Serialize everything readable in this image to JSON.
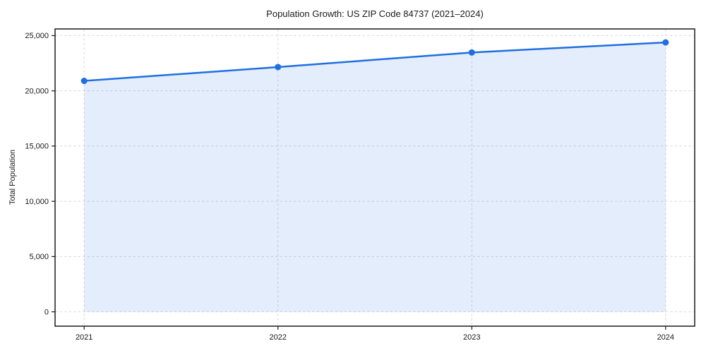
{
  "figure": {
    "title": "Population Growth: US ZIP Code 84737 (2021–2024)",
    "ylabel": "Total Population"
  },
  "chart_data": {
    "type": "area",
    "title": "Population Growth: US ZIP Code 84737 (2021–2024)",
    "xlabel": "",
    "ylabel": "Total Population",
    "x": [
      2021,
      2022,
      2023,
      2024
    ],
    "series": [
      {
        "name": "Total Population",
        "values": [
          20900,
          22150,
          23470,
          24380
        ]
      }
    ],
    "area_baseline": 0,
    "xtick_labels": [
      "2021",
      "2022",
      "2023",
      "2024"
    ],
    "xtick_values": [
      2021,
      2022,
      2023,
      2024
    ],
    "ytick_labels": [
      "0",
      "5,000",
      "10,000",
      "15,000",
      "20,000",
      "25,000"
    ],
    "ytick_values": [
      0,
      5000,
      10000,
      15000,
      20000,
      25000
    ],
    "xlim": [
      2020.85,
      2024.15
    ],
    "ylim": [
      -1300,
      25600
    ],
    "grid": true,
    "grid_style": "dashed",
    "legend": "none",
    "marker": "circle",
    "line_width": 2.5,
    "marker_radius": 4.5,
    "colors": {
      "line": "#1f6fe0",
      "marker": "#1f6fe0",
      "area": "#1f6fe0",
      "area_opacity": 0.12,
      "grid": "#d9d9d9",
      "spine": "#1a1a1a",
      "text": "#1a1a1a",
      "background": "#ffffff"
    }
  }
}
